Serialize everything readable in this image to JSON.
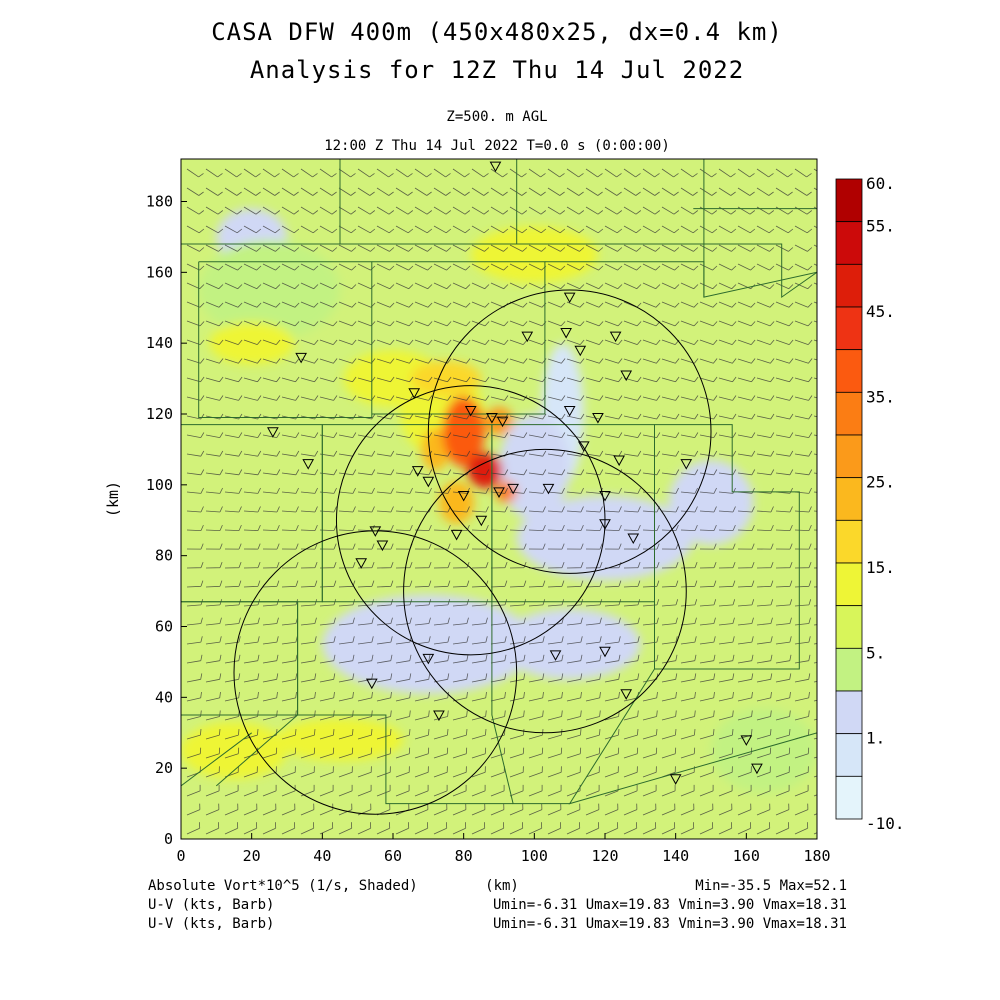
{
  "header": {
    "title_line1": "CASA DFW 400m (450x480x25, dx=0.4 km)",
    "title_line2": "Analysis for 12Z Thu 14 Jul 2022",
    "level": "Z=500. m AGL",
    "time": "12:00 Z Thu 14 Jul 2022    T=0.0 s (0:00:00)"
  },
  "footer": {
    "field_label": "Absolute Vort*10^5 (1/s, Shaded)",
    "x_unit": "(km)",
    "minmax": "Min=-35.5 Max=52.1",
    "vector_label_1": "U-V (kts, Barb)",
    "vector_stats_1": "Umin=-6.31 Umax=19.83 Vmin=3.90 Vmax=18.31",
    "vector_label_2": "U-V (kts, Barb)",
    "vector_stats_2": "Umin=-6.31 Umax=19.83 Vmin=3.90 Vmax=18.31"
  },
  "chart_data": {
    "type": "heatmap",
    "xlabel": "(km)",
    "ylabel": "(km)",
    "xlim": [
      0,
      180
    ],
    "ylim": [
      0,
      192
    ],
    "x_ticks": [
      0,
      20,
      40,
      60,
      80,
      100,
      120,
      140,
      160,
      180
    ],
    "y_ticks": [
      0,
      20,
      40,
      60,
      80,
      100,
      120,
      140,
      160,
      180
    ],
    "colorbar": {
      "labels": [
        "60.",
        "55.",
        "45.",
        "35.",
        "25.",
        "15.",
        "5.",
        "1.",
        "-10."
      ],
      "levels": [
        60,
        55,
        50,
        45,
        40,
        35,
        30,
        25,
        20,
        15,
        10,
        5,
        1,
        0,
        -10
      ],
      "colors": [
        "#b00000",
        "#cc0a0a",
        "#dd1e0a",
        "#ee3314",
        "#fb5a10",
        "#fb7d14",
        "#fb9a1a",
        "#fbb81e",
        "#fbd82a",
        "#eef536",
        "#d8f55a",
        "#c2f282",
        "#d0d8f5",
        "#d6e6f8",
        "#e4f4fb"
      ]
    },
    "background_color": "#d2f27a",
    "vorticity_regions": [
      {
        "x": 80,
        "y": 115,
        "rx": 6,
        "ry": 10,
        "value": 40
      },
      {
        "x": 86,
        "y": 104,
        "rx": 5,
        "ry": 5,
        "value": 50
      },
      {
        "x": 78,
        "y": 95,
        "rx": 5,
        "ry": 6,
        "value": 25
      },
      {
        "x": 72,
        "y": 110,
        "rx": 4,
        "ry": 6,
        "value": 25
      },
      {
        "x": 92,
        "y": 98,
        "rx": 3,
        "ry": 3,
        "value": 35
      },
      {
        "x": 90,
        "y": 118,
        "rx": 4,
        "ry": 4,
        "value": 30
      },
      {
        "x": 75,
        "y": 130,
        "rx": 10,
        "ry": 5,
        "value": 20
      },
      {
        "x": 74,
        "y": 120,
        "rx": 12,
        "ry": 12,
        "value": 15
      },
      {
        "x": 60,
        "y": 130,
        "rx": 14,
        "ry": 8,
        "value": 15
      },
      {
        "x": 20,
        "y": 140,
        "rx": 12,
        "ry": 6,
        "value": 15
      },
      {
        "x": 15,
        "y": 25,
        "rx": 15,
        "ry": 8,
        "value": 15
      },
      {
        "x": 100,
        "y": 165,
        "rx": 18,
        "ry": 8,
        "value": 15
      },
      {
        "x": 45,
        "y": 28,
        "rx": 18,
        "ry": 6,
        "value": 15
      },
      {
        "x": 25,
        "y": 155,
        "rx": 20,
        "ry": 14,
        "value": 5
      },
      {
        "x": 100,
        "y": 105,
        "rx": 10,
        "ry": 15,
        "value": 1
      },
      {
        "x": 108,
        "y": 120,
        "rx": 6,
        "ry": 20,
        "value": 0
      },
      {
        "x": 120,
        "y": 85,
        "rx": 25,
        "ry": 12,
        "value": 1
      },
      {
        "x": 70,
        "y": 55,
        "rx": 30,
        "ry": 14,
        "value": 1
      },
      {
        "x": 110,
        "y": 55,
        "rx": 20,
        "ry": 10,
        "value": 1
      },
      {
        "x": 150,
        "y": 95,
        "rx": 12,
        "ry": 12,
        "value": 1
      },
      {
        "x": 20,
        "y": 170,
        "rx": 10,
        "ry": 8,
        "value": 1
      },
      {
        "x": 165,
        "y": 25,
        "rx": 15,
        "ry": 12,
        "value": 5
      }
    ],
    "radar_circles": [
      {
        "x": 110,
        "y": 115,
        "r": 40
      },
      {
        "x": 82,
        "y": 90,
        "r": 38
      },
      {
        "x": 103,
        "y": 70,
        "r": 40
      },
      {
        "x": 55,
        "y": 47,
        "r": 40
      }
    ],
    "station_markers": [
      [
        89,
        190
      ],
      [
        110,
        153
      ],
      [
        109,
        143
      ],
      [
        98,
        142
      ],
      [
        123,
        142
      ],
      [
        113,
        138
      ],
      [
        34,
        136
      ],
      [
        126,
        131
      ],
      [
        66,
        126
      ],
      [
        82,
        121
      ],
      [
        88,
        119
      ],
      [
        91,
        118
      ],
      [
        110,
        121
      ],
      [
        118,
        119
      ],
      [
        26,
        115
      ],
      [
        114,
        111
      ],
      [
        124,
        107
      ],
      [
        36,
        106
      ],
      [
        67,
        104
      ],
      [
        70,
        101
      ],
      [
        80,
        97
      ],
      [
        90,
        98
      ],
      [
        94,
        99
      ],
      [
        104,
        99
      ],
      [
        120,
        97
      ],
      [
        143,
        106
      ],
      [
        120,
        89
      ],
      [
        85,
        90
      ],
      [
        78,
        86
      ],
      [
        55,
        87
      ],
      [
        57,
        83
      ],
      [
        51,
        78
      ],
      [
        128,
        85
      ],
      [
        106,
        52
      ],
      [
        120,
        53
      ],
      [
        70,
        51
      ],
      [
        54,
        44
      ],
      [
        126,
        41
      ],
      [
        73,
        35
      ],
      [
        160,
        28
      ],
      [
        140,
        17
      ],
      [
        163,
        20
      ]
    ],
    "county_lines": [
      [
        [
          0,
          168
        ],
        [
          170,
          168
        ],
        [
          170,
          153
        ],
        [
          180,
          160
        ]
      ],
      [
        [
          5,
          163
        ],
        [
          54,
          163
        ],
        [
          54,
          119
        ],
        [
          5,
          119
        ],
        [
          5,
          163
        ]
      ],
      [
        [
          54,
          163
        ],
        [
          103,
          163
        ],
        [
          103,
          120
        ],
        [
          54,
          120
        ]
      ],
      [
        [
          103,
          163
        ],
        [
          148,
          163
        ],
        [
          148,
          153
        ],
        [
          180,
          160
        ]
      ],
      [
        [
          0,
          117
        ],
        [
          40,
          117
        ],
        [
          40,
          67
        ],
        [
          0,
          67
        ]
      ],
      [
        [
          40,
          117
        ],
        [
          88,
          117
        ],
        [
          88,
          67
        ],
        [
          40,
          67
        ],
        [
          40,
          117
        ]
      ],
      [
        [
          88,
          117
        ],
        [
          134,
          117
        ],
        [
          134,
          67
        ],
        [
          88,
          67
        ],
        [
          88,
          117
        ]
      ],
      [
        [
          134,
          117
        ],
        [
          156,
          117
        ],
        [
          156,
          98
        ],
        [
          175,
          98
        ],
        [
          175,
          48
        ],
        [
          134,
          48
        ],
        [
          134,
          67
        ]
      ],
      [
        [
          0,
          67
        ],
        [
          33,
          67
        ],
        [
          33,
          35
        ],
        [
          0,
          35
        ]
      ],
      [
        [
          33,
          67
        ],
        [
          33,
          35
        ],
        [
          58,
          35
        ],
        [
          58,
          10
        ],
        [
          94,
          10
        ]
      ],
      [
        [
          88,
          67
        ],
        [
          88,
          35
        ],
        [
          94,
          10
        ],
        [
          110,
          10
        ]
      ],
      [
        [
          134,
          48
        ],
        [
          110,
          10
        ],
        [
          180,
          30
        ]
      ],
      [
        [
          10,
          15
        ],
        [
          33,
          35
        ]
      ],
      [
        [
          0,
          15
        ],
        [
          20,
          30
        ]
      ],
      [
        [
          148,
          193
        ],
        [
          148,
          153
        ]
      ],
      [
        [
          45,
          193
        ],
        [
          45,
          168
        ]
      ],
      [
        [
          95,
          193
        ],
        [
          95,
          168
        ]
      ],
      [
        [
          145,
          178
        ],
        [
          180,
          178
        ]
      ]
    ]
  }
}
